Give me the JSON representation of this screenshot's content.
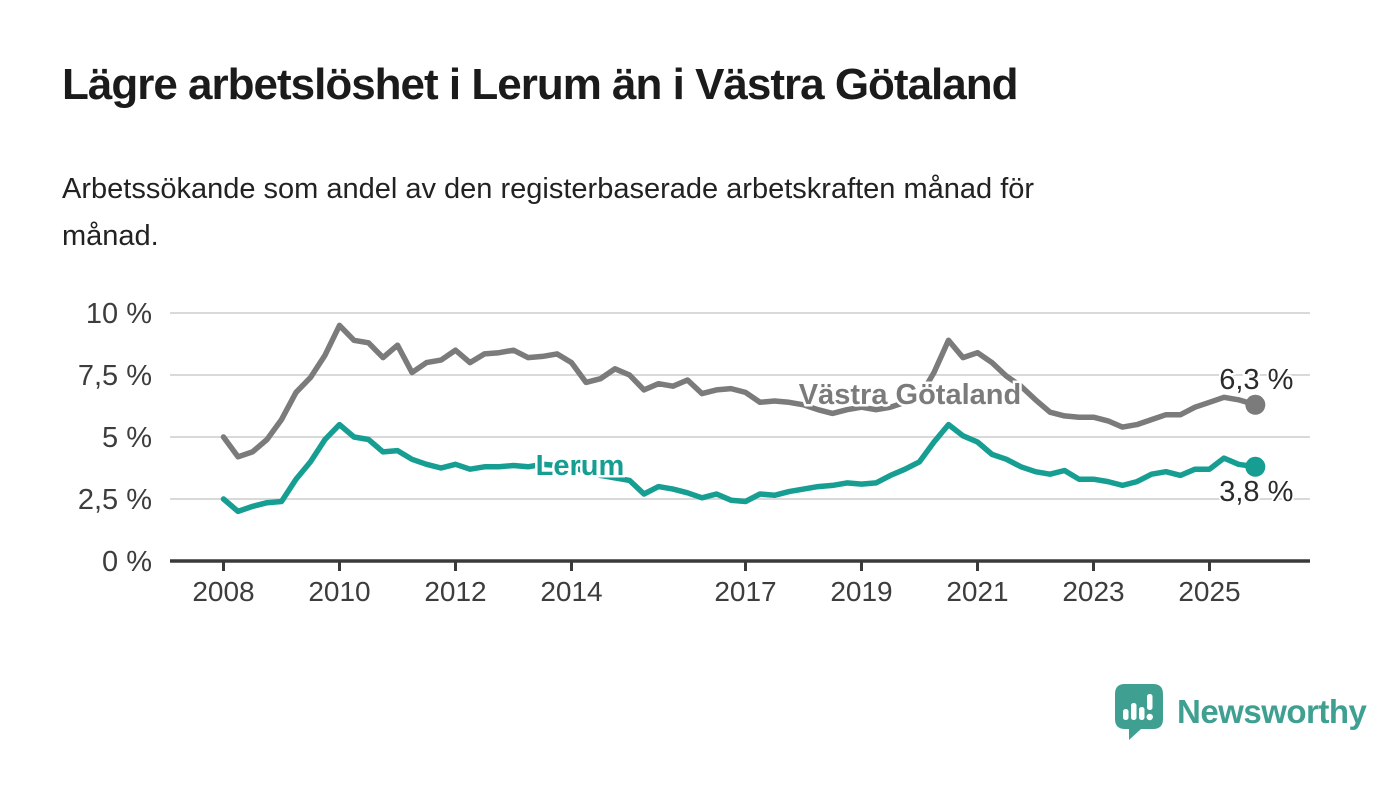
{
  "header": {
    "title": "Lägre arbetslöshet i Lerum än i Västra Götaland",
    "subtitle": "Arbetssökande som andel av den registerbaserade arbetskraften månad för\nmånad."
  },
  "footer": {
    "brand": "Newsworthy",
    "logo_icon": "newsworthy-speech-bubble-bar-chart-icon",
    "brand_color": "#3fa092"
  },
  "colors": {
    "vastra_gotaland": "#7b7b7b",
    "lerum": "#179e93",
    "grid": "#d9d9d9",
    "axis": "#3a3a3a",
    "tick_text": "#3d3d3d",
    "end_label_text": "#2b2b2b"
  },
  "chart_data": {
    "type": "line",
    "title": "Lägre arbetslöshet i Lerum än i Västra Götaland",
    "subtitle": "Arbetssökande som andel av den registerbaserade arbetskraften månad för månad.",
    "unit": "%",
    "grid": true,
    "x_axis": {
      "ticks": [
        {
          "value": 2008,
          "label": "2008"
        },
        {
          "value": 2010,
          "label": "2010"
        },
        {
          "value": 2012,
          "label": "2012"
        },
        {
          "value": 2014,
          "label": "2014"
        },
        {
          "value": 2017,
          "label": "2017"
        },
        {
          "value": 2019,
          "label": "2019"
        },
        {
          "value": 2021,
          "label": "2021"
        },
        {
          "value": 2023,
          "label": "2023"
        },
        {
          "value": 2025,
          "label": "2025"
        }
      ],
      "range": [
        2007.1,
        2026.75
      ]
    },
    "y_axis": {
      "ticks": [
        {
          "value": 10,
          "label": "10 %"
        },
        {
          "value": 7.5,
          "label": "7,5 %"
        },
        {
          "value": 5,
          "label": "5 %"
        },
        {
          "value": 2.5,
          "label": "2,5 %"
        },
        {
          "value": 0,
          "label": "0 %"
        }
      ],
      "range": [
        0,
        10
      ]
    },
    "series": [
      {
        "name": "Västra Götaland",
        "color": "#7b7b7b",
        "end_label": "6,3 %",
        "end_value": 6.3,
        "end_label_dy": -16,
        "inline_label": {
          "text": "Västra Götaland",
          "x": 910,
          "y": 404
        },
        "points": [
          [
            2008.0,
            5.0
          ],
          [
            2008.25,
            4.2
          ],
          [
            2008.5,
            4.4
          ],
          [
            2008.75,
            4.9
          ],
          [
            2009.0,
            5.7
          ],
          [
            2009.25,
            6.8
          ],
          [
            2009.5,
            7.4
          ],
          [
            2009.75,
            8.3
          ],
          [
            2010.0,
            9.5
          ],
          [
            2010.25,
            8.9
          ],
          [
            2010.5,
            8.8
          ],
          [
            2010.75,
            8.2
          ],
          [
            2011.0,
            8.7
          ],
          [
            2011.25,
            7.6
          ],
          [
            2011.5,
            8.0
          ],
          [
            2011.75,
            8.1
          ],
          [
            2012.0,
            8.5
          ],
          [
            2012.25,
            8.0
          ],
          [
            2012.5,
            8.35
          ],
          [
            2012.75,
            8.4
          ],
          [
            2013.0,
            8.5
          ],
          [
            2013.25,
            8.2
          ],
          [
            2013.5,
            8.25
          ],
          [
            2013.75,
            8.35
          ],
          [
            2014.0,
            8.0
          ],
          [
            2014.25,
            7.2
          ],
          [
            2014.5,
            7.35
          ],
          [
            2014.75,
            7.75
          ],
          [
            2015.0,
            7.5
          ],
          [
            2015.25,
            6.9
          ],
          [
            2015.5,
            7.15
          ],
          [
            2015.75,
            7.05
          ],
          [
            2016.0,
            7.3
          ],
          [
            2016.25,
            6.75
          ],
          [
            2016.5,
            6.9
          ],
          [
            2016.75,
            6.95
          ],
          [
            2017.0,
            6.8
          ],
          [
            2017.25,
            6.4
          ],
          [
            2017.5,
            6.45
          ],
          [
            2017.75,
            6.4
          ],
          [
            2018.0,
            6.3
          ],
          [
            2018.25,
            6.1
          ],
          [
            2018.5,
            5.95
          ],
          [
            2018.75,
            6.1
          ],
          [
            2019.0,
            6.2
          ],
          [
            2019.25,
            6.1
          ],
          [
            2019.5,
            6.2
          ],
          [
            2019.75,
            6.4
          ],
          [
            2020.0,
            6.6
          ],
          [
            2020.25,
            7.6
          ],
          [
            2020.5,
            8.9
          ],
          [
            2020.75,
            8.2
          ],
          [
            2021.0,
            8.4
          ],
          [
            2021.25,
            8.0
          ],
          [
            2021.5,
            7.45
          ],
          [
            2021.75,
            7.05
          ],
          [
            2022.0,
            6.5
          ],
          [
            2022.25,
            6.0
          ],
          [
            2022.5,
            5.85
          ],
          [
            2022.75,
            5.8
          ],
          [
            2023.0,
            5.8
          ],
          [
            2023.25,
            5.65
          ],
          [
            2023.5,
            5.4
          ],
          [
            2023.75,
            5.5
          ],
          [
            2024.0,
            5.7
          ],
          [
            2024.25,
            5.9
          ],
          [
            2024.5,
            5.9
          ],
          [
            2024.75,
            6.2
          ],
          [
            2025.0,
            6.4
          ],
          [
            2025.25,
            6.6
          ],
          [
            2025.5,
            6.5
          ],
          [
            2025.79,
            6.3
          ]
        ]
      },
      {
        "name": "Lerum",
        "color": "#179e93",
        "end_label": "3,8 %",
        "end_value": 3.8,
        "end_label_dy": 34,
        "inline_label": {
          "text": "Lerum",
          "x": 580,
          "y": 475
        },
        "points": [
          [
            2008.0,
            2.5
          ],
          [
            2008.25,
            2.0
          ],
          [
            2008.5,
            2.2
          ],
          [
            2008.75,
            2.35
          ],
          [
            2009.0,
            2.4
          ],
          [
            2009.25,
            3.3
          ],
          [
            2009.5,
            4.0
          ],
          [
            2009.75,
            4.9
          ],
          [
            2010.0,
            5.5
          ],
          [
            2010.25,
            5.0
          ],
          [
            2010.5,
            4.9
          ],
          [
            2010.75,
            4.4
          ],
          [
            2011.0,
            4.45
          ],
          [
            2011.25,
            4.1
          ],
          [
            2011.5,
            3.9
          ],
          [
            2011.75,
            3.75
          ],
          [
            2012.0,
            3.9
          ],
          [
            2012.25,
            3.7
          ],
          [
            2012.5,
            3.8
          ],
          [
            2012.75,
            3.8
          ],
          [
            2013.0,
            3.85
          ],
          [
            2013.25,
            3.8
          ],
          [
            2013.5,
            3.9
          ],
          [
            2013.75,
            3.85
          ],
          [
            2014.0,
            3.8
          ],
          [
            2014.25,
            3.6
          ],
          [
            2014.5,
            3.45
          ],
          [
            2014.75,
            3.35
          ],
          [
            2015.0,
            3.25
          ],
          [
            2015.25,
            2.7
          ],
          [
            2015.5,
            3.0
          ],
          [
            2015.75,
            2.9
          ],
          [
            2016.0,
            2.75
          ],
          [
            2016.25,
            2.55
          ],
          [
            2016.5,
            2.7
          ],
          [
            2016.75,
            2.45
          ],
          [
            2017.0,
            2.4
          ],
          [
            2017.25,
            2.7
          ],
          [
            2017.5,
            2.65
          ],
          [
            2017.75,
            2.8
          ],
          [
            2018.0,
            2.9
          ],
          [
            2018.25,
            3.0
          ],
          [
            2018.5,
            3.05
          ],
          [
            2018.75,
            3.15
          ],
          [
            2019.0,
            3.1
          ],
          [
            2019.25,
            3.15
          ],
          [
            2019.5,
            3.45
          ],
          [
            2019.75,
            3.7
          ],
          [
            2020.0,
            4.0
          ],
          [
            2020.25,
            4.8
          ],
          [
            2020.5,
            5.5
          ],
          [
            2020.75,
            5.05
          ],
          [
            2021.0,
            4.8
          ],
          [
            2021.25,
            4.3
          ],
          [
            2021.5,
            4.1
          ],
          [
            2021.75,
            3.8
          ],
          [
            2022.0,
            3.6
          ],
          [
            2022.25,
            3.5
          ],
          [
            2022.5,
            3.65
          ],
          [
            2022.75,
            3.3
          ],
          [
            2023.0,
            3.3
          ],
          [
            2023.25,
            3.2
          ],
          [
            2023.5,
            3.05
          ],
          [
            2023.75,
            3.2
          ],
          [
            2024.0,
            3.5
          ],
          [
            2024.25,
            3.6
          ],
          [
            2024.5,
            3.45
          ],
          [
            2024.75,
            3.7
          ],
          [
            2025.0,
            3.7
          ],
          [
            2025.25,
            4.15
          ],
          [
            2025.5,
            3.9
          ],
          [
            2025.79,
            3.8
          ]
        ]
      }
    ]
  }
}
